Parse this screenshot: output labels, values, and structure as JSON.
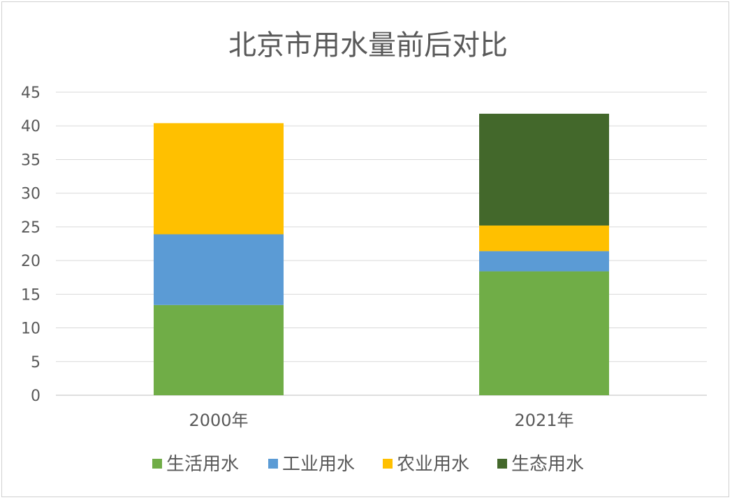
{
  "chart_data": {
    "type": "bar",
    "stacked": true,
    "title": "北京市用水量前后对比",
    "categories": [
      "2000年",
      "2021年"
    ],
    "series": [
      {
        "name": "生活用水",
        "color": "#70ad47",
        "values": [
          13.4,
          18.4
        ]
      },
      {
        "name": "工业用水",
        "color": "#5b9bd5",
        "values": [
          10.5,
          3.0
        ]
      },
      {
        "name": "农业用水",
        "color": "#ffc000",
        "values": [
          16.5,
          3.8
        ]
      },
      {
        "name": "生态用水",
        "color": "#43682b",
        "values": [
          0,
          16.6
        ]
      }
    ],
    "ylim": [
      0,
      45
    ],
    "yticks": [
      "0",
      "5",
      "10",
      "15",
      "20",
      "25",
      "30",
      "35",
      "40",
      "45"
    ],
    "grid": true,
    "legend": "bottom"
  }
}
